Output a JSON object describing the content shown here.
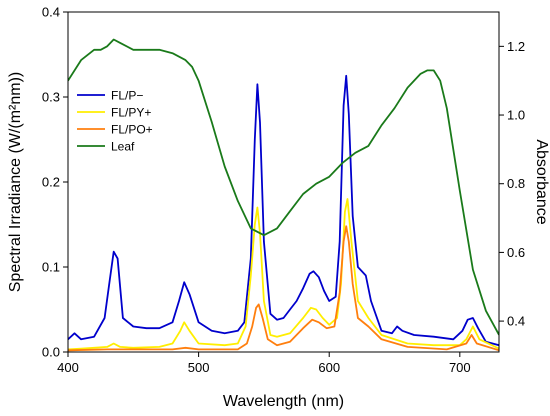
{
  "chart_data": {
    "type": "line",
    "xlabel": "Wavelength (nm)",
    "ylabel": "Spectral Irradiance (W/(m²nm))",
    "y2label": "Absorbance",
    "xlim": [
      400,
      730
    ],
    "ylim": [
      0,
      0.4
    ],
    "y2lim": [
      0.31,
      1.3
    ],
    "xticks": [
      400,
      500,
      600,
      700
    ],
    "yticks": [
      0.0,
      0.1,
      0.2,
      0.3,
      0.4
    ],
    "yticklabels": [
      "0.0",
      "0.1",
      "0.2",
      "0.3",
      "0.4"
    ],
    "y2ticks": [
      0.4,
      0.6,
      0.8,
      1.0,
      1.2
    ],
    "y2ticklabels": [
      "0.4",
      "0.6",
      "0.8",
      "1.0",
      "1.2"
    ],
    "grid": false,
    "legend_position": "top-left",
    "series": [
      {
        "name": "FL/P−",
        "axis": "left",
        "color": "#0000cc",
        "x": [
          400,
          405,
          410,
          420,
          428,
          432,
          435,
          438,
          442,
          450,
          460,
          470,
          480,
          485,
          489,
          493,
          500,
          510,
          520,
          530,
          535,
          540,
          543,
          545,
          547,
          550,
          555,
          560,
          565,
          570,
          575,
          580,
          585,
          588,
          592,
          596,
          600,
          605,
          608,
          611,
          613,
          615,
          618,
          622,
          628,
          632,
          640,
          648,
          652,
          656,
          665,
          680,
          695,
          702,
          706,
          710,
          714,
          720,
          730
        ],
        "y": [
          0.015,
          0.022,
          0.015,
          0.018,
          0.04,
          0.085,
          0.118,
          0.11,
          0.04,
          0.03,
          0.028,
          0.028,
          0.035,
          0.06,
          0.082,
          0.068,
          0.035,
          0.025,
          0.022,
          0.025,
          0.035,
          0.11,
          0.25,
          0.315,
          0.27,
          0.13,
          0.045,
          0.038,
          0.04,
          0.05,
          0.06,
          0.075,
          0.092,
          0.095,
          0.088,
          0.072,
          0.06,
          0.065,
          0.13,
          0.29,
          0.325,
          0.28,
          0.16,
          0.1,
          0.09,
          0.06,
          0.025,
          0.022,
          0.03,
          0.025,
          0.02,
          0.018,
          0.015,
          0.025,
          0.038,
          0.04,
          0.028,
          0.012,
          0.008
        ]
      },
      {
        "name": "FL/PY+",
        "axis": "left",
        "color": "#ffee00",
        "x": [
          400,
          410,
          420,
          430,
          435,
          440,
          450,
          470,
          480,
          486,
          489,
          493,
          500,
          520,
          530,
          536,
          540,
          543,
          545,
          547,
          550,
          555,
          560,
          570,
          580,
          586,
          590,
          595,
          600,
          606,
          609,
          612,
          614,
          617,
          622,
          630,
          640,
          660,
          680,
          700,
          705,
          710,
          715,
          730
        ],
        "y": [
          0.003,
          0.004,
          0.005,
          0.006,
          0.01,
          0.006,
          0.005,
          0.006,
          0.01,
          0.025,
          0.035,
          0.025,
          0.01,
          0.008,
          0.01,
          0.03,
          0.09,
          0.15,
          0.17,
          0.14,
          0.06,
          0.02,
          0.018,
          0.022,
          0.04,
          0.052,
          0.05,
          0.04,
          0.032,
          0.04,
          0.08,
          0.165,
          0.18,
          0.13,
          0.06,
          0.04,
          0.02,
          0.01,
          0.008,
          0.008,
          0.015,
          0.03,
          0.015,
          0.004
        ]
      },
      {
        "name": "FL/PO+",
        "axis": "left",
        "color": "#ff7f0e",
        "x": [
          400,
          430,
          450,
          480,
          490,
          500,
          530,
          537,
          541,
          544,
          546,
          549,
          553,
          560,
          570,
          580,
          587,
          592,
          598,
          604,
          608,
          611,
          613,
          615,
          618,
          622,
          630,
          640,
          660,
          690,
          705,
          709,
          713,
          730
        ],
        "y": [
          0.002,
          0.003,
          0.003,
          0.003,
          0.005,
          0.003,
          0.003,
          0.01,
          0.03,
          0.052,
          0.056,
          0.04,
          0.015,
          0.008,
          0.012,
          0.028,
          0.038,
          0.035,
          0.028,
          0.03,
          0.07,
          0.13,
          0.148,
          0.13,
          0.08,
          0.04,
          0.03,
          0.015,
          0.006,
          0.003,
          0.01,
          0.02,
          0.01,
          0.002
        ]
      },
      {
        "name": "Leaf",
        "axis": "right",
        "color": "#1a7a1a",
        "x": [
          400,
          410,
          420,
          425,
          430,
          435,
          440,
          450,
          460,
          470,
          480,
          490,
          495,
          500,
          510,
          520,
          530,
          540,
          550,
          560,
          570,
          580,
          590,
          600,
          610,
          620,
          630,
          640,
          650,
          660,
          670,
          675,
          680,
          685,
          690,
          700,
          710,
          720,
          730
        ],
        "y": [
          1.1,
          1.16,
          1.19,
          1.19,
          1.2,
          1.22,
          1.21,
          1.19,
          1.19,
          1.19,
          1.18,
          1.16,
          1.14,
          1.1,
          0.98,
          0.85,
          0.75,
          0.67,
          0.65,
          0.67,
          0.72,
          0.77,
          0.8,
          0.82,
          0.86,
          0.89,
          0.91,
          0.97,
          1.02,
          1.08,
          1.12,
          1.13,
          1.13,
          1.1,
          1.02,
          0.78,
          0.55,
          0.43,
          0.36
        ]
      }
    ]
  }
}
